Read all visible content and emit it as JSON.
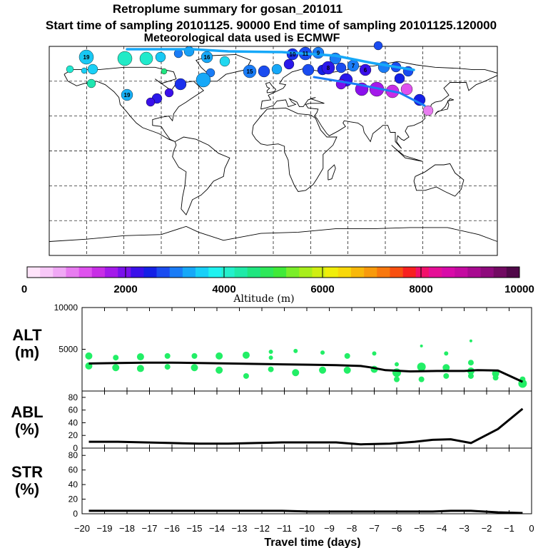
{
  "header": {
    "title": "Retroplume summary for gosan_201011",
    "sampling": "Start time of sampling 20101125. 90000     End time of sampling 20101125.120000",
    "meteo": "Meteorological data used is ECMWF"
  },
  "colorbar": {
    "xlabel": "Altitude (m)",
    "ticks": [
      "0",
      "2000",
      "4000",
      "6000",
      "8000",
      "10000"
    ],
    "colors": [
      "#ffe4fa",
      "#f8c8f8",
      "#f0a8f5",
      "#e87cf0",
      "#df52ee",
      "#c82ee6",
      "#a41aea",
      "#7a10ec",
      "#3a10ea",
      "#1420e6",
      "#1a4cf0",
      "#1a7cf6",
      "#16a8f8",
      "#18d0f8",
      "#20f2f0",
      "#24f0cc",
      "#20eaa8",
      "#20e680",
      "#2ee85a",
      "#40ea38",
      "#7aee2a",
      "#a8ee1c",
      "#d0ee12",
      "#f0ee0a",
      "#f8d80a",
      "#f8b80a",
      "#f89a0c",
      "#f8780e",
      "#f85010",
      "#f82020",
      "#f2106a",
      "#e60e96",
      "#d80aa8",
      "#c40aa0",
      "#a80a90",
      "#8e0a7c",
      "#720a62",
      "#500848"
    ]
  },
  "map_labels": [
    "10",
    "11",
    "12",
    "13",
    "14",
    "15",
    "16",
    "17",
    "18",
    "19"
  ],
  "chart_data": [
    {
      "type": "line",
      "panel": "ALT",
      "ylabel": "ALT (m)",
      "y_ticks": [
        "10000",
        "5000"
      ],
      "ylim": [
        0,
        10000
      ],
      "x": [
        -19.7,
        -18.4,
        -17.2,
        -16,
        -14.8,
        -13.5,
        -12.3,
        -11.1,
        -9.9,
        -8.7,
        -7.6,
        -7.2,
        -6.5,
        -5.4,
        -4.2,
        -3.6,
        -3,
        -2.4,
        -1.5,
        -0.4
      ],
      "values": [
        3300,
        3350,
        3400,
        3400,
        3350,
        3300,
        3250,
        3200,
        3150,
        3100,
        3000,
        2850,
        2500,
        2350,
        2400,
        2400,
        2400,
        2500,
        2450,
        1100
      ],
      "markers": [
        {
          "x": -19.7,
          "y": 4200,
          "s": 5
        },
        {
          "x": -19.7,
          "y": 3000,
          "s": 5
        },
        {
          "x": -18.5,
          "y": 4000,
          "s": 4
        },
        {
          "x": -18.5,
          "y": 2800,
          "s": 5
        },
        {
          "x": -17.4,
          "y": 4100,
          "s": 5
        },
        {
          "x": -17.4,
          "y": 2700,
          "s": 5
        },
        {
          "x": -16.2,
          "y": 4200,
          "s": 4
        },
        {
          "x": -16.2,
          "y": 2900,
          "s": 4
        },
        {
          "x": -15,
          "y": 4200,
          "s": 4
        },
        {
          "x": -15,
          "y": 2800,
          "s": 5
        },
        {
          "x": -13.9,
          "y": 4200,
          "s": 5
        },
        {
          "x": -13.9,
          "y": 2500,
          "s": 5
        },
        {
          "x": -12.7,
          "y": 4300,
          "s": 5
        },
        {
          "x": -12.7,
          "y": 1800,
          "s": 4
        },
        {
          "x": -11.6,
          "y": 4700,
          "s": 3
        },
        {
          "x": -11.6,
          "y": 4000,
          "s": 3
        },
        {
          "x": -11.6,
          "y": 2600,
          "s": 4
        },
        {
          "x": -10.5,
          "y": 4800,
          "s": 3
        },
        {
          "x": -10.5,
          "y": 2200,
          "s": 5
        },
        {
          "x": -9.3,
          "y": 4600,
          "s": 3
        },
        {
          "x": -9.3,
          "y": 2500,
          "s": 5
        },
        {
          "x": -8.2,
          "y": 4200,
          "s": 4
        },
        {
          "x": -8.2,
          "y": 2500,
          "s": 5
        },
        {
          "x": -7,
          "y": 4500,
          "s": 3
        },
        {
          "x": -7,
          "y": 2600,
          "s": 5
        },
        {
          "x": -6,
          "y": 3200,
          "s": 3
        },
        {
          "x": -6,
          "y": 2200,
          "s": 6
        },
        {
          "x": -6,
          "y": 1400,
          "s": 4
        },
        {
          "x": -4.9,
          "y": 5400,
          "s": 2
        },
        {
          "x": -4.9,
          "y": 2900,
          "s": 6
        },
        {
          "x": -4.9,
          "y": 1400,
          "s": 4
        },
        {
          "x": -3.8,
          "y": 4500,
          "s": 3
        },
        {
          "x": -3.8,
          "y": 2800,
          "s": 5
        },
        {
          "x": -3.8,
          "y": 1800,
          "s": 4
        },
        {
          "x": -2.7,
          "y": 3400,
          "s": 4
        },
        {
          "x": -2.7,
          "y": 2400,
          "s": 5
        },
        {
          "x": -2.7,
          "y": 1800,
          "s": 4
        },
        {
          "x": -2.7,
          "y": 6000,
          "s": 2
        },
        {
          "x": -1.6,
          "y": 2100,
          "s": 5
        },
        {
          "x": -1.6,
          "y": 1600,
          "s": 4
        },
        {
          "x": -0.4,
          "y": 1400,
          "s": 4
        },
        {
          "x": -0.4,
          "y": 900,
          "s": 6
        }
      ]
    },
    {
      "type": "line",
      "panel": "ABL",
      "ylabel": "ABL (%)",
      "y_ticks": [
        "80",
        "60",
        "40",
        "20",
        "0"
      ],
      "ylim": [
        0,
        90
      ],
      "x": [
        -19.7,
        -18.4,
        -17.2,
        -16,
        -14.8,
        -13.5,
        -12.3,
        -11.1,
        -9.9,
        -8.7,
        -7.6,
        -6.3,
        -5.2,
        -4.4,
        -3.6,
        -2.7,
        -1.5,
        -0.4
      ],
      "values": [
        10,
        10,
        9,
        8,
        7,
        7,
        8,
        9,
        9,
        9,
        6,
        7,
        10,
        13,
        14,
        8,
        30,
        62
      ]
    },
    {
      "type": "line",
      "panel": "STR",
      "ylabel": "STR (%)",
      "y_ticks": [
        "80",
        "60",
        "40",
        "20",
        "0"
      ],
      "ylim": [
        0,
        90
      ],
      "x": [
        -19.7,
        -18.4,
        -17.2,
        -16,
        -14.8,
        -13.5,
        -12.3,
        -11.1,
        -9.9,
        -8.7,
        -7.6,
        -6.3,
        -5.2,
        -4.4,
        -3.6,
        -2.7,
        -1.5,
        -0.4
      ],
      "values": [
        4,
        4,
        4,
        4,
        4,
        4,
        4,
        4,
        3,
        3,
        3,
        3,
        3,
        3,
        4,
        4,
        2,
        1
      ]
    }
  ],
  "x_axis": {
    "label": "Travel time (days)",
    "ticks": [
      "−20",
      "−19",
      "−18",
      "−17",
      "−16",
      "−15",
      "−14",
      "−13",
      "−12",
      "−11",
      "−10",
      "−9",
      "−8",
      "−7",
      "−6",
      "−5",
      "−4",
      "−3",
      "−2",
      "−1",
      "0"
    ]
  }
}
